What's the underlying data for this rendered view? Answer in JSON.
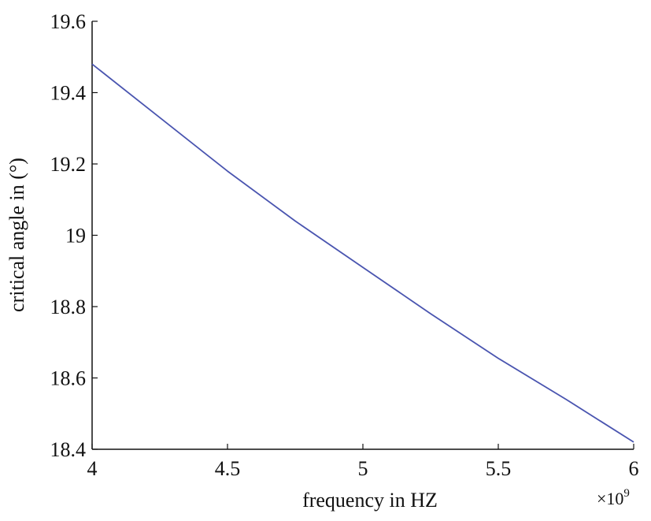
{
  "chart_data": {
    "type": "line",
    "xlabel": "frequency in HZ",
    "ylabel": "critical angle in (°)",
    "x_exponent": {
      "base": "×10",
      "power": "9"
    },
    "xlim": [
      4,
      6
    ],
    "ylim": [
      18.4,
      19.6
    ],
    "x_ticks": [
      4,
      4.5,
      5,
      5.5,
      6
    ],
    "x_tick_labels": [
      "4",
      "4.5",
      "5",
      "5.5",
      "6"
    ],
    "y_ticks": [
      18.4,
      18.6,
      18.8,
      19,
      19.2,
      19.4,
      19.6
    ],
    "y_tick_labels": [
      "18.4",
      "18.6",
      "18.8",
      "19",
      "19.2",
      "19.4",
      "19.6"
    ],
    "grid": false,
    "series": [
      {
        "color": "#4a55b0",
        "x": [
          4.0,
          4.25,
          4.5,
          4.75,
          5.0,
          5.25,
          5.5,
          5.75,
          6.0
        ],
        "y": [
          19.48,
          19.33,
          19.18,
          19.04,
          18.91,
          18.78,
          18.655,
          18.54,
          18.42
        ]
      }
    ]
  }
}
